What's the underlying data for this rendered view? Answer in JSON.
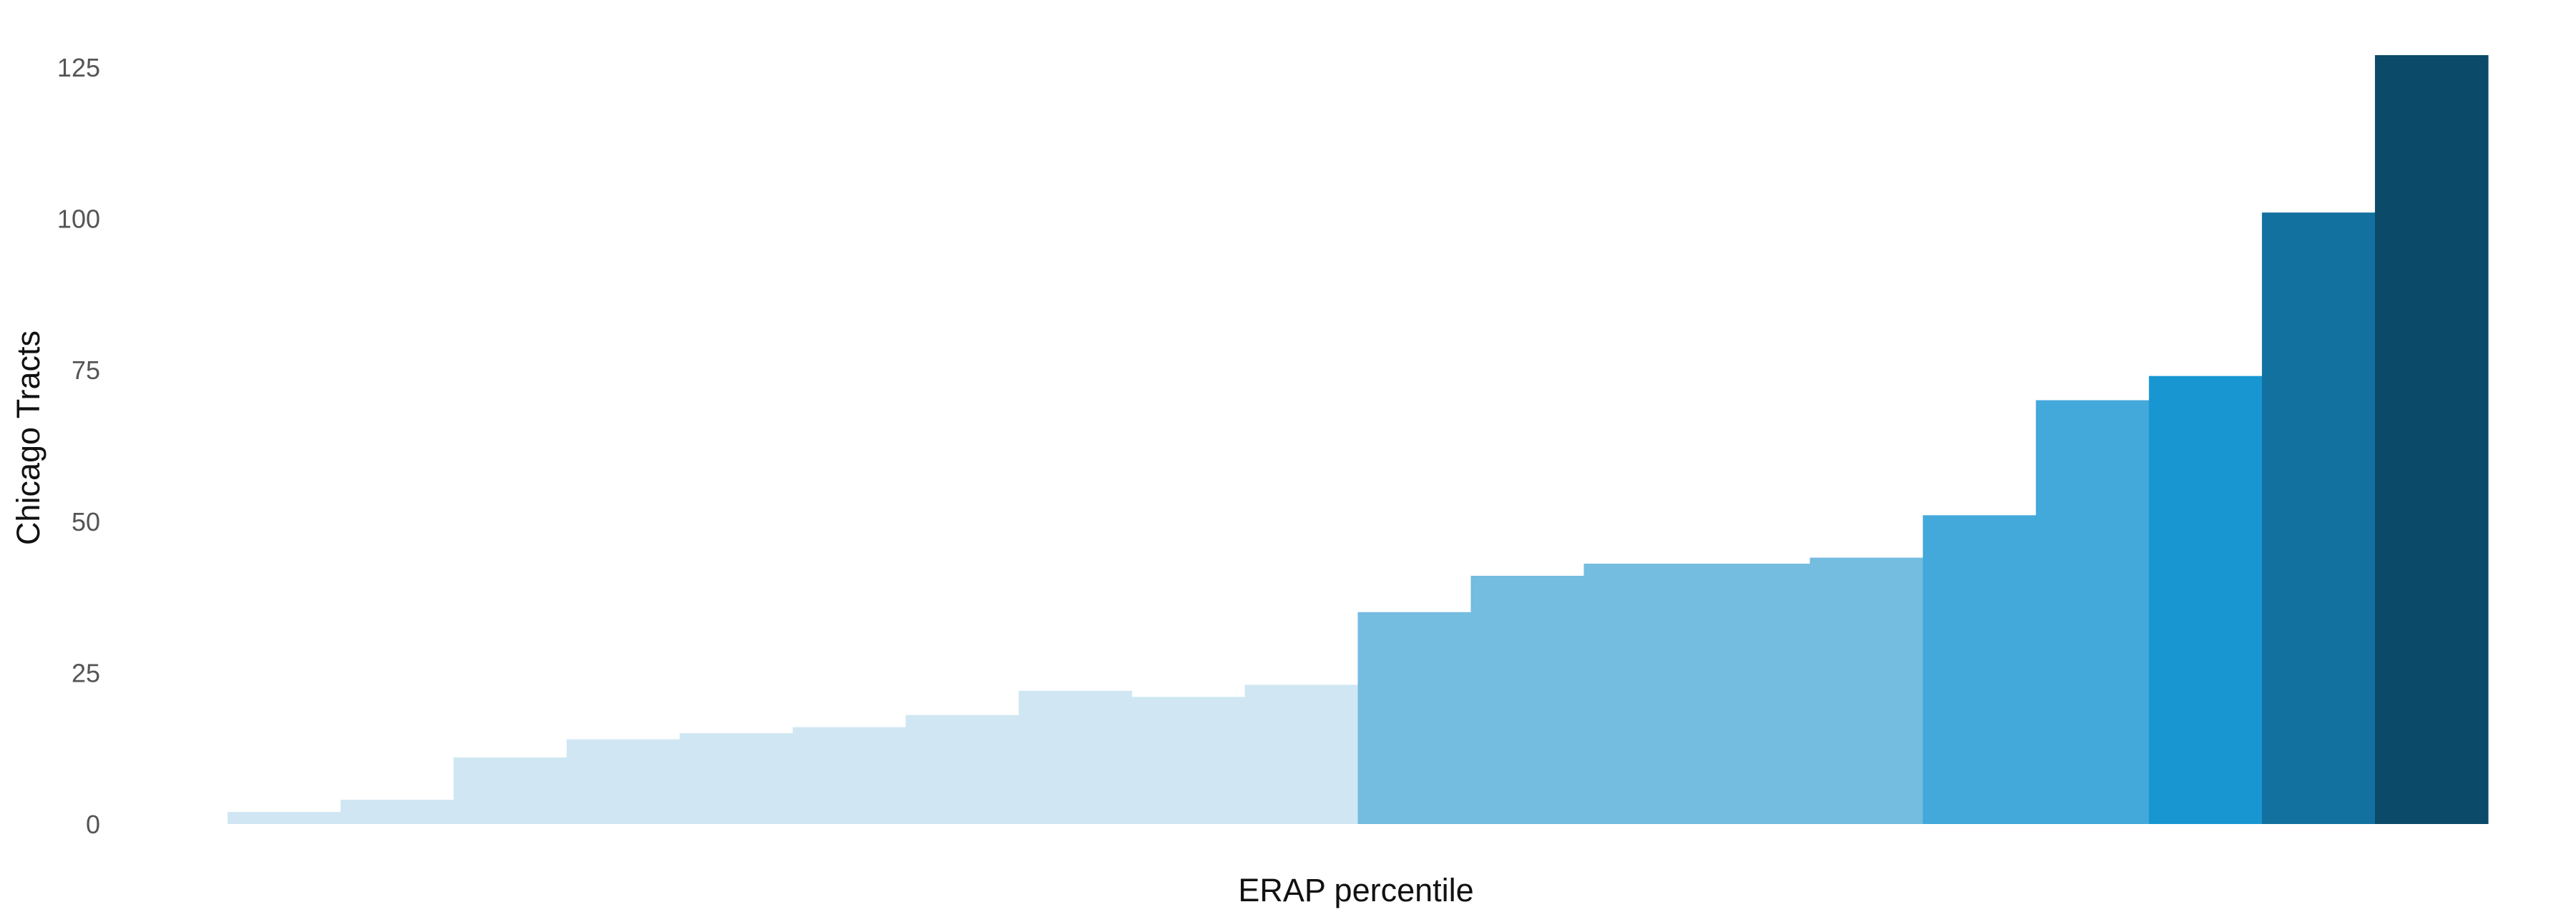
{
  "chart_data": {
    "type": "bar",
    "title": "",
    "xlabel": "ERAP percentile",
    "ylabel": "Chicago Tracts",
    "ylim": [
      0,
      125
    ],
    "yticks": [
      0,
      25,
      50,
      75,
      100,
      125
    ],
    "x_tick_labels_shown": false,
    "grid": false,
    "legend": "none",
    "bar_gap": 0,
    "values": [
      2,
      4,
      11,
      14,
      15,
      16,
      18,
      22,
      21,
      23,
      35,
      41,
      43,
      43,
      44,
      51,
      70,
      74,
      101,
      127
    ],
    "colors": [
      "#d0e7f3",
      "#d0e7f3",
      "#d0e7f3",
      "#d0e7f3",
      "#d0e7f3",
      "#d0e7f3",
      "#d0e7f3",
      "#d0e7f3",
      "#d0e7f3",
      "#d0e7f3",
      "#74bce0",
      "#74bce0",
      "#74bce0",
      "#74bce0",
      "#74bce0",
      "#43a8da",
      "#43a8da",
      "#1796d2",
      "#12719e",
      "#0b4a68"
    ]
  }
}
